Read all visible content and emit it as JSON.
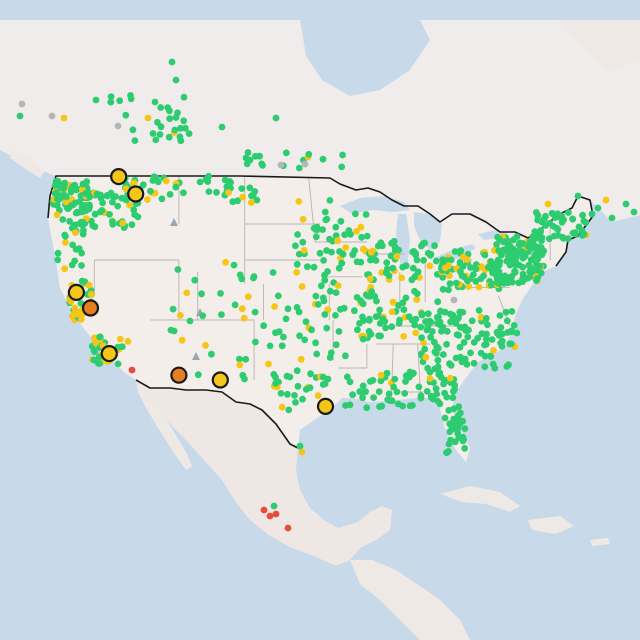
{
  "colors": {
    "water": "#c8daea",
    "land": "#efe9e6",
    "usa_land": "#f3eeea",
    "canada_land": "#f1ecec",
    "mexico_land": "#efe7e3",
    "border": "#1a1a1a",
    "state_border": "#b9b2b2",
    "good": "#2ecc71",
    "moderate": "#f5c518",
    "usg": "#e67e22",
    "unhealthy": "#e74c3c",
    "nodata": "#b5b5b5"
  },
  "icons": {
    "station_marker": "circle-marker-icon",
    "highlight_marker": "ringed-circle-marker-icon",
    "terrain": "mountain-peak-icon"
  },
  "highlighted_sites": [
    {
      "lat": 48.95,
      "lng": -117.4,
      "level": "moderate"
    },
    {
      "lat": 47.5,
      "lng": -115.6,
      "level": "moderate"
    },
    {
      "lat": 39.3,
      "lng": -121.9,
      "level": "moderate"
    },
    {
      "lat": 38.0,
      "lng": -120.4,
      "level": "usg"
    },
    {
      "lat": 34.2,
      "lng": -118.4,
      "level": "moderate"
    },
    {
      "lat": 32.4,
      "lng": -111.0,
      "level": "usg"
    },
    {
      "lat": 32.0,
      "lng": -106.6,
      "level": "moderate"
    },
    {
      "lat": 29.8,
      "lng": -95.4,
      "level": "moderate"
    }
  ]
}
